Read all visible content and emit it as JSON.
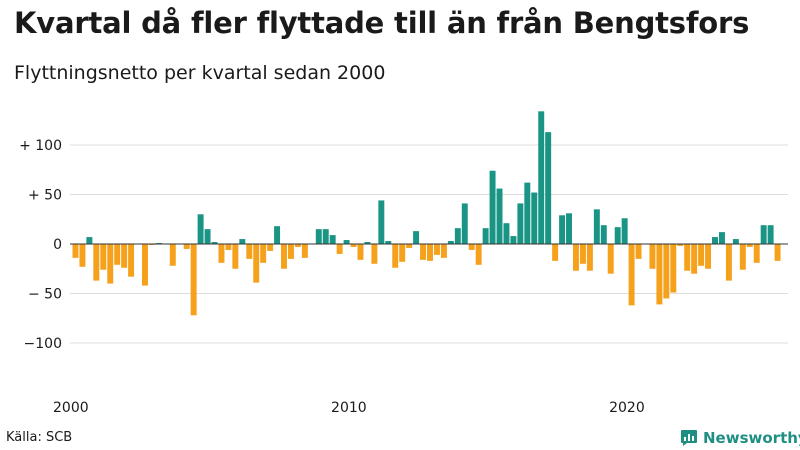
{
  "header": {
    "title": "Kvartal då fler flyttade till än från Bengtsfors",
    "subtitle": "Flyttningsnetto per kvartal sedan 2000"
  },
  "footer": {
    "source": "Källa: SCB",
    "brand": "Newsworthy"
  },
  "colors": {
    "positive": "#1a9485",
    "negative": "#f5a11b",
    "grid": "#dddddd",
    "zero_line": "#333333",
    "text": "#1a1a1a",
    "brand": "#1f8f84"
  },
  "chart_data": {
    "type": "bar",
    "x_start": 2000.0,
    "x_step": 0.25,
    "xlim": [
      2000,
      2025.75
    ],
    "ylim": [
      -135,
      135
    ],
    "y_ticks": [
      {
        "value": 100,
        "label": "+ 100"
      },
      {
        "value": 50,
        "label": "+  50"
      },
      {
        "value": 0,
        "label": "0"
      },
      {
        "value": -50,
        "label": "− 50"
      },
      {
        "value": -100,
        "label": "−100"
      }
    ],
    "x_ticks": [
      {
        "value": 2000,
        "label": "2000"
      },
      {
        "value": 2010,
        "label": "2010"
      },
      {
        "value": 2020,
        "label": "2020"
      }
    ],
    "grid": true,
    "values": [
      -14,
      -23,
      7,
      -37,
      -26,
      -40,
      -21,
      -24,
      -33,
      0,
      -42,
      -1,
      1,
      0,
      -22,
      0,
      -5,
      -72,
      30,
      15,
      2,
      -19,
      -6,
      -25,
      5,
      -15,
      -39,
      -19,
      -7,
      18,
      -25,
      -15,
      -3,
      -14,
      0,
      15,
      15,
      9,
      -10,
      4,
      -3,
      -16,
      2,
      -20,
      44,
      3,
      -24,
      -18,
      -4,
      13,
      -16,
      -17,
      -11,
      -14,
      3,
      16,
      41,
      -6,
      -21,
      16,
      74,
      56,
      21,
      8,
      41,
      62,
      52,
      134,
      113,
      -17,
      29,
      31,
      -27,
      -20,
      -27,
      35,
      19,
      -30,
      17,
      26,
      -62,
      -15,
      0,
      -25,
      -61,
      -55,
      -49,
      -2,
      -27,
      -30,
      -22,
      -25,
      7,
      12,
      -37,
      5,
      -26,
      -3,
      -19,
      19,
      19,
      -17
    ]
  }
}
